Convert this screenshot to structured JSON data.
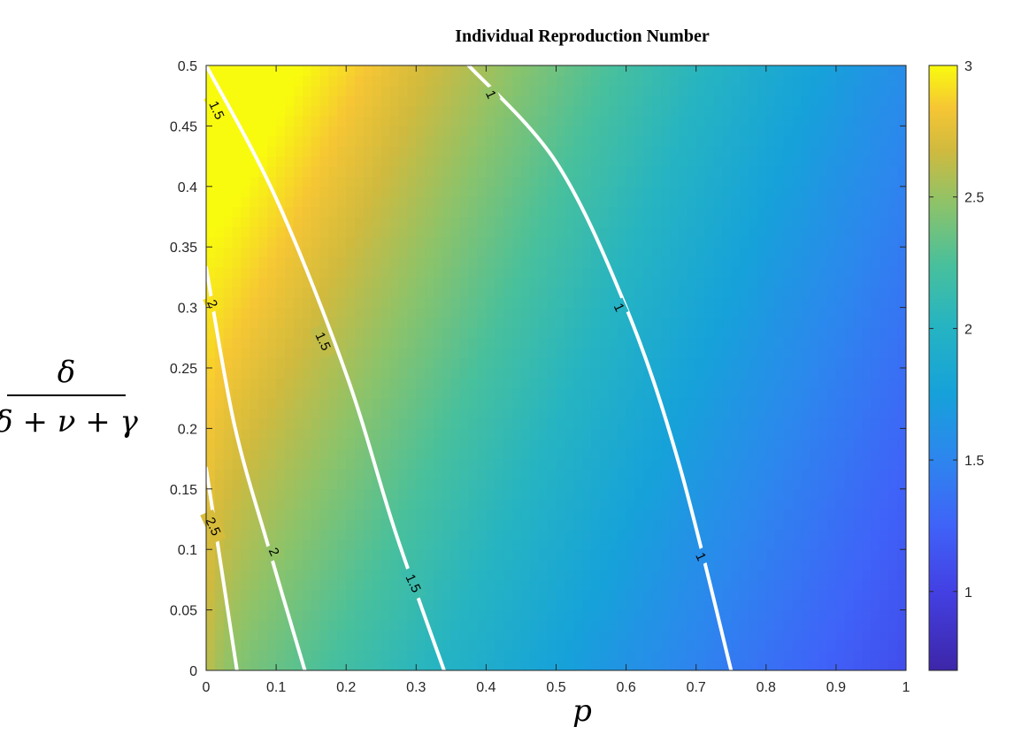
{
  "chart_data": {
    "type": "heatmap",
    "title": "Individual Reproduction Number",
    "xlabel": "p",
    "ylabel_num": "δ",
    "ylabel_den": "δ + ν + γ",
    "xlim": [
      0,
      1
    ],
    "ylim": [
      0,
      0.5
    ],
    "xticks": [
      0,
      0.1,
      0.2,
      0.3,
      0.4,
      0.5,
      0.6,
      0.7,
      0.8,
      0.9,
      1
    ],
    "xtick_labels": [
      "0",
      "0.1",
      "0.2",
      "0.3",
      "0.4",
      "0.5",
      "0.6",
      "0.7",
      "0.8",
      "0.9",
      "1"
    ],
    "yticks": [
      0,
      0.05,
      0.1,
      0.15,
      0.2,
      0.25,
      0.3,
      0.35,
      0.4,
      0.45,
      0.5
    ],
    "ytick_labels": [
      "0",
      "0.05",
      "0.1",
      "0.15",
      "0.2",
      "0.25",
      "0.3",
      "0.35",
      "0.4",
      "0.45",
      "0.5"
    ],
    "colorbar": {
      "colormap": "parula",
      "clim": [
        0.7,
        3
      ],
      "ticks": [
        1,
        1.5,
        2,
        2.5,
        3
      ],
      "tick_labels": [
        "1",
        "1.5",
        "2",
        "2.5",
        "3"
      ]
    },
    "contours": [
      {
        "level": 2.5,
        "label": "2.5",
        "points": [
          [
            0,
            0.167
          ],
          [
            0.044,
            0
          ]
        ]
      },
      {
        "level": 2,
        "label": "2",
        "points": [
          [
            0,
            0.333
          ],
          [
            0.04,
            0.204
          ],
          [
            0.09,
            0.1
          ],
          [
            0.141,
            0
          ]
        ]
      },
      {
        "level": 1.5,
        "label": "1.5",
        "points": [
          [
            0,
            0.5
          ],
          [
            0.1,
            0.39
          ],
          [
            0.2,
            0.245
          ],
          [
            0.27,
            0.115
          ],
          [
            0.34,
            0
          ]
        ]
      },
      {
        "level": 1,
        "label": "1",
        "points": [
          [
            0.375,
            0.5
          ],
          [
            0.5,
            0.42
          ],
          [
            0.6,
            0.3
          ],
          [
            0.675,
            0.172
          ],
          [
            0.75,
            0
          ]
        ]
      }
    ],
    "contour_labels": [
      {
        "label": "1.5",
        "x": 0.015,
        "y": 0.463
      },
      {
        "label": "1.5",
        "x": 0.167,
        "y": 0.272
      },
      {
        "label": "1.5",
        "x": 0.296,
        "y": 0.072
      },
      {
        "label": "2",
        "x": 0.009,
        "y": 0.303
      },
      {
        "label": "2",
        "x": 0.097,
        "y": 0.098
      },
      {
        "label": "2.5",
        "x": 0.01,
        "y": 0.119
      },
      {
        "label": "1",
        "x": 0.407,
        "y": 0.476
      },
      {
        "label": "1",
        "x": 0.59,
        "y": 0.3
      },
      {
        "label": "1",
        "x": 0.707,
        "y": 0.094
      }
    ]
  }
}
